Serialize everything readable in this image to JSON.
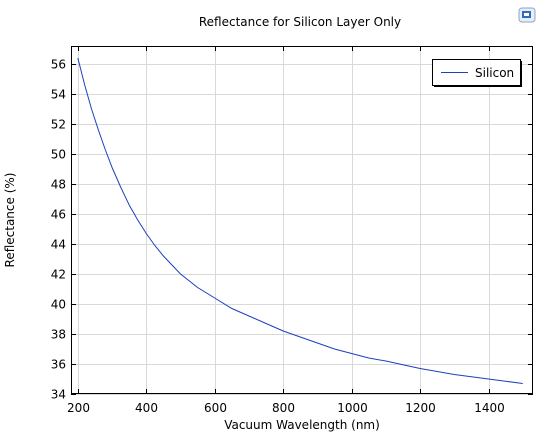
{
  "chart_data": {
    "type": "line",
    "title": "Reflectance for Silicon Layer Only",
    "xlabel": "Vacuum Wavelength (nm)",
    "ylabel": "Reflectance (%)",
    "xlim": [
      180,
      1530
    ],
    "ylim": [
      34,
      57.2
    ],
    "xticks": [
      200,
      400,
      600,
      800,
      1000,
      1200,
      1400
    ],
    "yticks": [
      34,
      36,
      38,
      40,
      42,
      44,
      46,
      48,
      50,
      52,
      54,
      56
    ],
    "grid": true,
    "legend_position": "top-right",
    "series": [
      {
        "name": "Silicon",
        "color": "#1f3fbf",
        "x": [
          200,
          220,
          240,
          260,
          280,
          300,
          325,
          350,
          375,
          400,
          425,
          450,
          475,
          500,
          550,
          600,
          650,
          700,
          750,
          800,
          850,
          900,
          950,
          1000,
          1050,
          1100,
          1150,
          1200,
          1250,
          1300,
          1350,
          1400,
          1450,
          1500
        ],
        "y": [
          56.4,
          54.6,
          53.0,
          51.6,
          50.3,
          49.1,
          47.8,
          46.6,
          45.6,
          44.7,
          43.9,
          43.2,
          42.6,
          42.0,
          41.1,
          40.4,
          39.7,
          39.2,
          38.7,
          38.2,
          37.8,
          37.4,
          37.0,
          36.7,
          36.4,
          36.2,
          35.95,
          35.7,
          35.5,
          35.3,
          35.15,
          35.0,
          34.85,
          34.7
        ]
      }
    ]
  },
  "toolbar": {
    "icon": "window-restore-icon"
  }
}
